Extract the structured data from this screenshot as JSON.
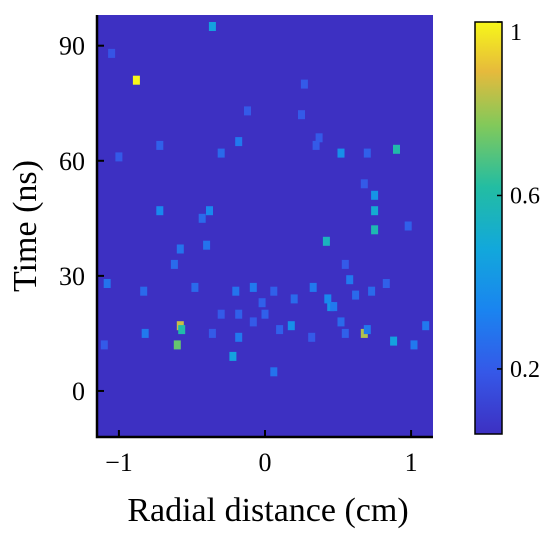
{
  "chart_data": {
    "type": "heatmap",
    "xlabel": "Radial distance (cm)",
    "ylabel": "Time (ns)",
    "xlim": [
      -1.15,
      1.15
    ],
    "ylim": [
      -12,
      98
    ],
    "x_ticks": [
      -1,
      0,
      1
    ],
    "x_tick_labels": [
      "−1",
      "0",
      "1"
    ],
    "y_ticks": [
      0,
      30,
      60,
      90
    ],
    "y_tick_labels": [
      "0",
      "30",
      "60",
      "90"
    ],
    "colormap": "parula",
    "background_value": 0.05,
    "colorbar": {
      "range": [
        0.05,
        1
      ],
      "ticks": [
        0.2,
        0.6,
        1
      ],
      "tick_labels": [
        "0.2",
        "0.6",
        "1"
      ]
    },
    "grid": false,
    "points": [
      {
        "x": -0.88,
        "y": 81,
        "v": 1.0
      },
      {
        "x": -0.36,
        "y": 95,
        "v": 0.45
      },
      {
        "x": -0.6,
        "y": 12,
        "v": 0.72
      },
      {
        "x": -0.58,
        "y": 17,
        "v": 0.85
      },
      {
        "x": -0.57,
        "y": 16,
        "v": 0.6
      },
      {
        "x": 0.68,
        "y": 15,
        "v": 0.82
      },
      {
        "x": 0.9,
        "y": 63,
        "v": 0.6
      },
      {
        "x": 0.75,
        "y": 42,
        "v": 0.58
      },
      {
        "x": 0.75,
        "y": 47,
        "v": 0.5
      },
      {
        "x": 0.75,
        "y": 51,
        "v": 0.4
      },
      {
        "x": 0.42,
        "y": 39,
        "v": 0.55
      },
      {
        "x": 0.52,
        "y": 62,
        "v": 0.38
      },
      {
        "x": 0.45,
        "y": 22,
        "v": 0.4
      },
      {
        "x": 0.88,
        "y": 13,
        "v": 0.45
      },
      {
        "x": -0.72,
        "y": 47,
        "v": 0.35
      },
      {
        "x": -0.22,
        "y": 9,
        "v": 0.45
      },
      {
        "x": 0.18,
        "y": 17,
        "v": 0.38
      },
      {
        "x": -0.18,
        "y": 65,
        "v": 0.3
      },
      {
        "x": -0.3,
        "y": 62,
        "v": 0.25
      },
      {
        "x": -0.38,
        "y": 47,
        "v": 0.35
      },
      {
        "x": -0.43,
        "y": 45,
        "v": 0.25
      },
      {
        "x": -0.4,
        "y": 38,
        "v": 0.28
      },
      {
        "x": -0.58,
        "y": 37,
        "v": 0.28
      },
      {
        "x": -0.62,
        "y": 33,
        "v": 0.25
      },
      {
        "x": -0.83,
        "y": 26,
        "v": 0.25
      },
      {
        "x": -0.82,
        "y": 15,
        "v": 0.3
      },
      {
        "x": -1.08,
        "y": 28,
        "v": 0.28
      },
      {
        "x": -1.1,
        "y": 12,
        "v": 0.2
      },
      {
        "x": -0.48,
        "y": 27,
        "v": 0.25
      },
      {
        "x": -0.2,
        "y": 26,
        "v": 0.28
      },
      {
        "x": -0.08,
        "y": 27,
        "v": 0.3
      },
      {
        "x": -0.02,
        "y": 23,
        "v": 0.22
      },
      {
        "x": 0.06,
        "y": 26,
        "v": 0.22
      },
      {
        "x": 0.2,
        "y": 24,
        "v": 0.25
      },
      {
        "x": 0.33,
        "y": 27,
        "v": 0.3
      },
      {
        "x": 0.43,
        "y": 24,
        "v": 0.35
      },
      {
        "x": 0.47,
        "y": 22,
        "v": 0.3
      },
      {
        "x": 0.58,
        "y": 29,
        "v": 0.3
      },
      {
        "x": 0.62,
        "y": 25,
        "v": 0.25
      },
      {
        "x": 0.73,
        "y": 26,
        "v": 0.25
      },
      {
        "x": 0.83,
        "y": 28,
        "v": 0.22
      },
      {
        "x": -0.18,
        "y": 20,
        "v": 0.22
      },
      {
        "x": -0.18,
        "y": 14,
        "v": 0.3
      },
      {
        "x": 0.0,
        "y": 20,
        "v": 0.22
      },
      {
        "x": 0.1,
        "y": 16,
        "v": 0.22
      },
      {
        "x": 0.52,
        "y": 18,
        "v": 0.25
      },
      {
        "x": 0.55,
        "y": 15,
        "v": 0.22
      },
      {
        "x": 1.02,
        "y": 12,
        "v": 0.3
      },
      {
        "x": 1.1,
        "y": 17,
        "v": 0.3
      },
      {
        "x": 0.06,
        "y": 5,
        "v": 0.28
      },
      {
        "x": -0.36,
        "y": 15,
        "v": 0.2
      },
      {
        "x": -0.72,
        "y": 64,
        "v": 0.22
      },
      {
        "x": -1.0,
        "y": 61,
        "v": 0.2
      },
      {
        "x": -0.12,
        "y": 73,
        "v": 0.2
      },
      {
        "x": 0.35,
        "y": 64,
        "v": 0.2
      },
      {
        "x": 0.37,
        "y": 66,
        "v": 0.2
      },
      {
        "x": 0.27,
        "y": 80,
        "v": 0.2
      },
      {
        "x": 0.7,
        "y": 62,
        "v": 0.22
      },
      {
        "x": 0.25,
        "y": 72,
        "v": 0.2
      },
      {
        "x": 0.68,
        "y": 54,
        "v": 0.2
      },
      {
        "x": 0.98,
        "y": 43,
        "v": 0.22
      },
      {
        "x": -1.05,
        "y": 88,
        "v": 0.18
      },
      {
        "x": 0.55,
        "y": 33,
        "v": 0.2
      },
      {
        "x": -0.3,
        "y": 20,
        "v": 0.2
      },
      {
        "x": 0.7,
        "y": 16,
        "v": 0.3
      },
      {
        "x": -0.08,
        "y": 18,
        "v": 0.2
      },
      {
        "x": 0.32,
        "y": 14,
        "v": 0.2
      }
    ]
  }
}
